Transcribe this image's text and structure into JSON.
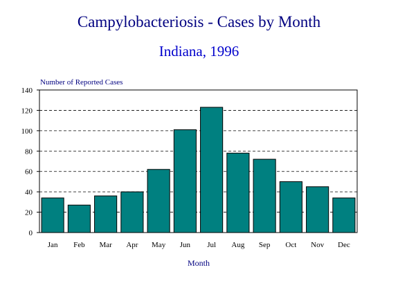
{
  "chart_data": {
    "type": "bar",
    "title": "Campylobacteriosis - Cases by Month",
    "subtitle": "Indiana, 1996",
    "xlabel": "Month",
    "ylabel": "Number of Reported Cases",
    "categories": [
      "Jan",
      "Feb",
      "Mar",
      "Apr",
      "May",
      "Jun",
      "Jul",
      "Aug",
      "Sep",
      "Oct",
      "Nov",
      "Dec"
    ],
    "values": [
      34,
      27,
      36,
      40,
      62,
      101,
      123,
      78,
      72,
      50,
      45,
      34
    ],
    "ylim": [
      0,
      140
    ],
    "yticks": [
      "0",
      "20",
      "40",
      "60",
      "80",
      "100",
      "120",
      "140"
    ],
    "grid": true,
    "bar_color": "#008080",
    "title_color": "#000080",
    "subtitle_color": "#0000cc"
  }
}
